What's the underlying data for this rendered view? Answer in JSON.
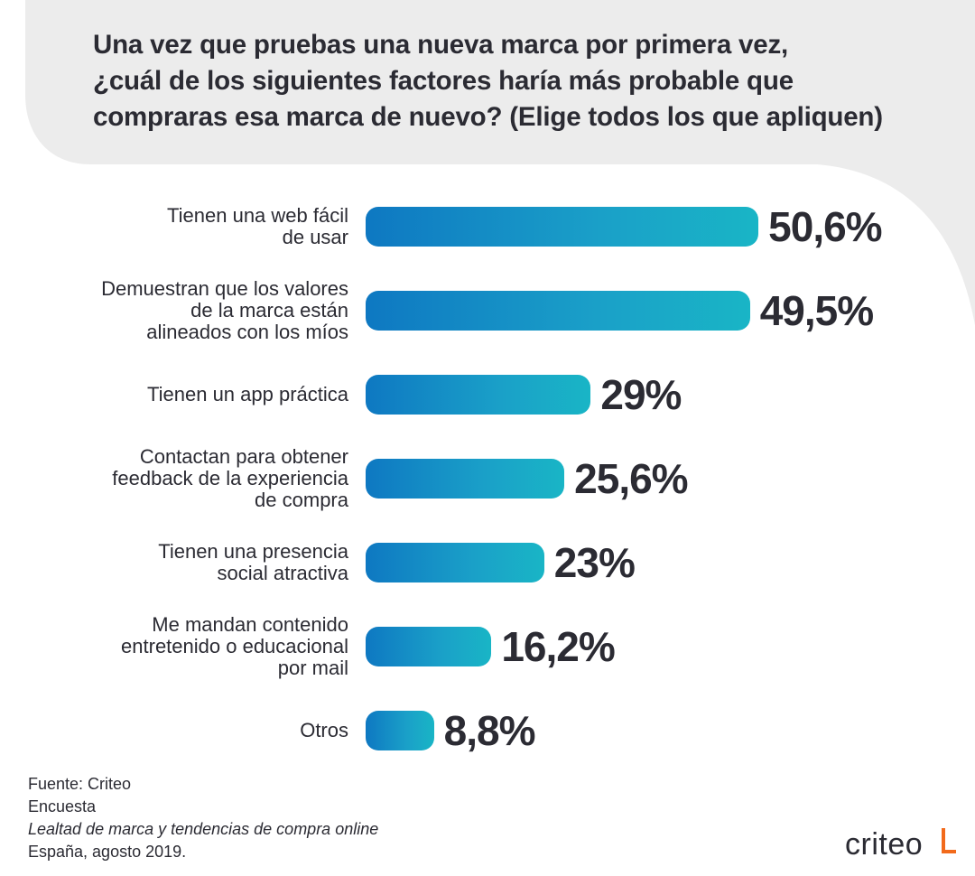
{
  "title": {
    "lines": [
      "Una vez que pruebas una nueva marca por primera vez,",
      "¿cuál de los siguientes factores haría más probable que",
      "compraras esa marca de nuevo? (Elige todos los que apliquen)"
    ]
  },
  "chart_data": {
    "type": "bar",
    "orientation": "horizontal",
    "categories": [
      "Tienen una web fácil\nde usar",
      "Demuestran que los valores\nde la marca están\nalineados con los míos",
      "Tienen un app práctica",
      "Contactan para obtener\nfeedback de la experiencia\nde compra",
      "Tienen una presencia\nsocial atractiva",
      "Me mandan contenido\nentretenido o educacional\npor mail",
      "Otros"
    ],
    "values": [
      50.6,
      49.5,
      29,
      25.6,
      23,
      16.2,
      8.8
    ],
    "value_labels": [
      "50,6%",
      "49,5%",
      "29%",
      "25,6%",
      "23%",
      "16,2%",
      "8,8%"
    ],
    "unit": "%",
    "bar_color": "#0e78c2",
    "bar_color_end": "#19b5c6",
    "grid": false,
    "legend": "none"
  },
  "source": {
    "line1": "Fuente: Criteo",
    "line2": "Encuesta",
    "line3": "Lealtad de marca y tendencias de compra online",
    "line4": "España, agosto 2019."
  },
  "logo": {
    "text": "criteo",
    "accent_color": "#f26a1b"
  },
  "colors": {
    "background_shape": "#ececec",
    "text": "#2b2b33"
  }
}
